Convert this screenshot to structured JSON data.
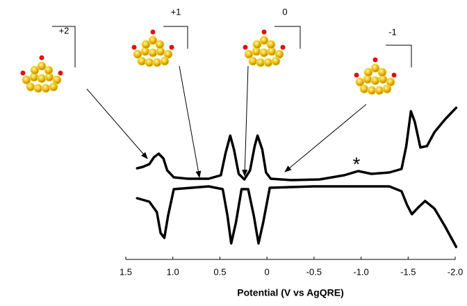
{
  "chart_data": {
    "type": "line",
    "x_label": "Potential (V vs AgQRE)",
    "xlim": [
      1.5,
      -2.0
    ],
    "xticks": [
      1.5,
      {
        "value": 1,
        "label": "1.0"
      },
      0.5,
      0,
      -0.5,
      {
        "value": -1,
        "label": "-1.0"
      },
      -1.5,
      {
        "value": -2,
        "label": "-2.0"
      }
    ],
    "ylim": [
      -9,
      12
    ],
    "annotations": [
      "+2",
      "+1",
      "0",
      "-1",
      "*"
    ],
    "series": [
      {
        "color": "#000000",
        "x": [
          1.38,
          1.32,
          1.25,
          1.2,
          1.15,
          1.1,
          1.06,
          0.99,
          0.84,
          0.62,
          0.49,
          0.44,
          0.39,
          0.35,
          0.3,
          0.24,
          0.18,
          0.13,
          0.1,
          0.05,
          0.01,
          -0.04,
          -0.26,
          -0.56,
          -0.82,
          -0.97,
          -1.11,
          -1.3,
          -1.43,
          -1.48,
          -1.53,
          -1.57,
          -1.63,
          -1.7,
          -1.78,
          -1.89,
          -1.96,
          -2.01
        ],
        "values": [
          2.3,
          2.5,
          2.9,
          3.9,
          4.4,
          3.7,
          2.0,
          1.0,
          0.8,
          0.8,
          1.3,
          4.5,
          7.0,
          5.0,
          1.5,
          0.7,
          2.0,
          5.5,
          7.0,
          5.0,
          1.7,
          0.8,
          0.6,
          0.7,
          1.3,
          1.9,
          1.5,
          1.7,
          2.2,
          5.5,
          10.5,
          9.0,
          5.3,
          5.5,
          7.5,
          9.3,
          10.3,
          11.0
        ]
      },
      {
        "color": "#000000",
        "x": [
          1.38,
          1.25,
          1.17,
          1.13,
          1.09,
          1.05,
          0.99,
          0.62,
          0.47,
          0.42,
          0.38,
          0.33,
          0.27,
          0.2,
          0.14,
          0.09,
          0.04,
          -0.03,
          -0.49,
          -1.3,
          -1.43,
          -1.49,
          -1.54,
          -1.61,
          -1.68,
          -1.78,
          -1.89,
          -2.01
        ],
        "values": [
          -2.0,
          -2.5,
          -4.0,
          -7.0,
          -7.7,
          -4.5,
          -0.7,
          -0.3,
          -0.7,
          -4.5,
          -8.5,
          -5.5,
          -0.7,
          -0.7,
          -4.5,
          -8.5,
          -5.5,
          -0.5,
          -0.3,
          -0.3,
          -1.0,
          -3.0,
          -4.3,
          -3.3,
          -2.4,
          -3.5,
          -6.0,
          -9.0
        ]
      }
    ]
  }
}
